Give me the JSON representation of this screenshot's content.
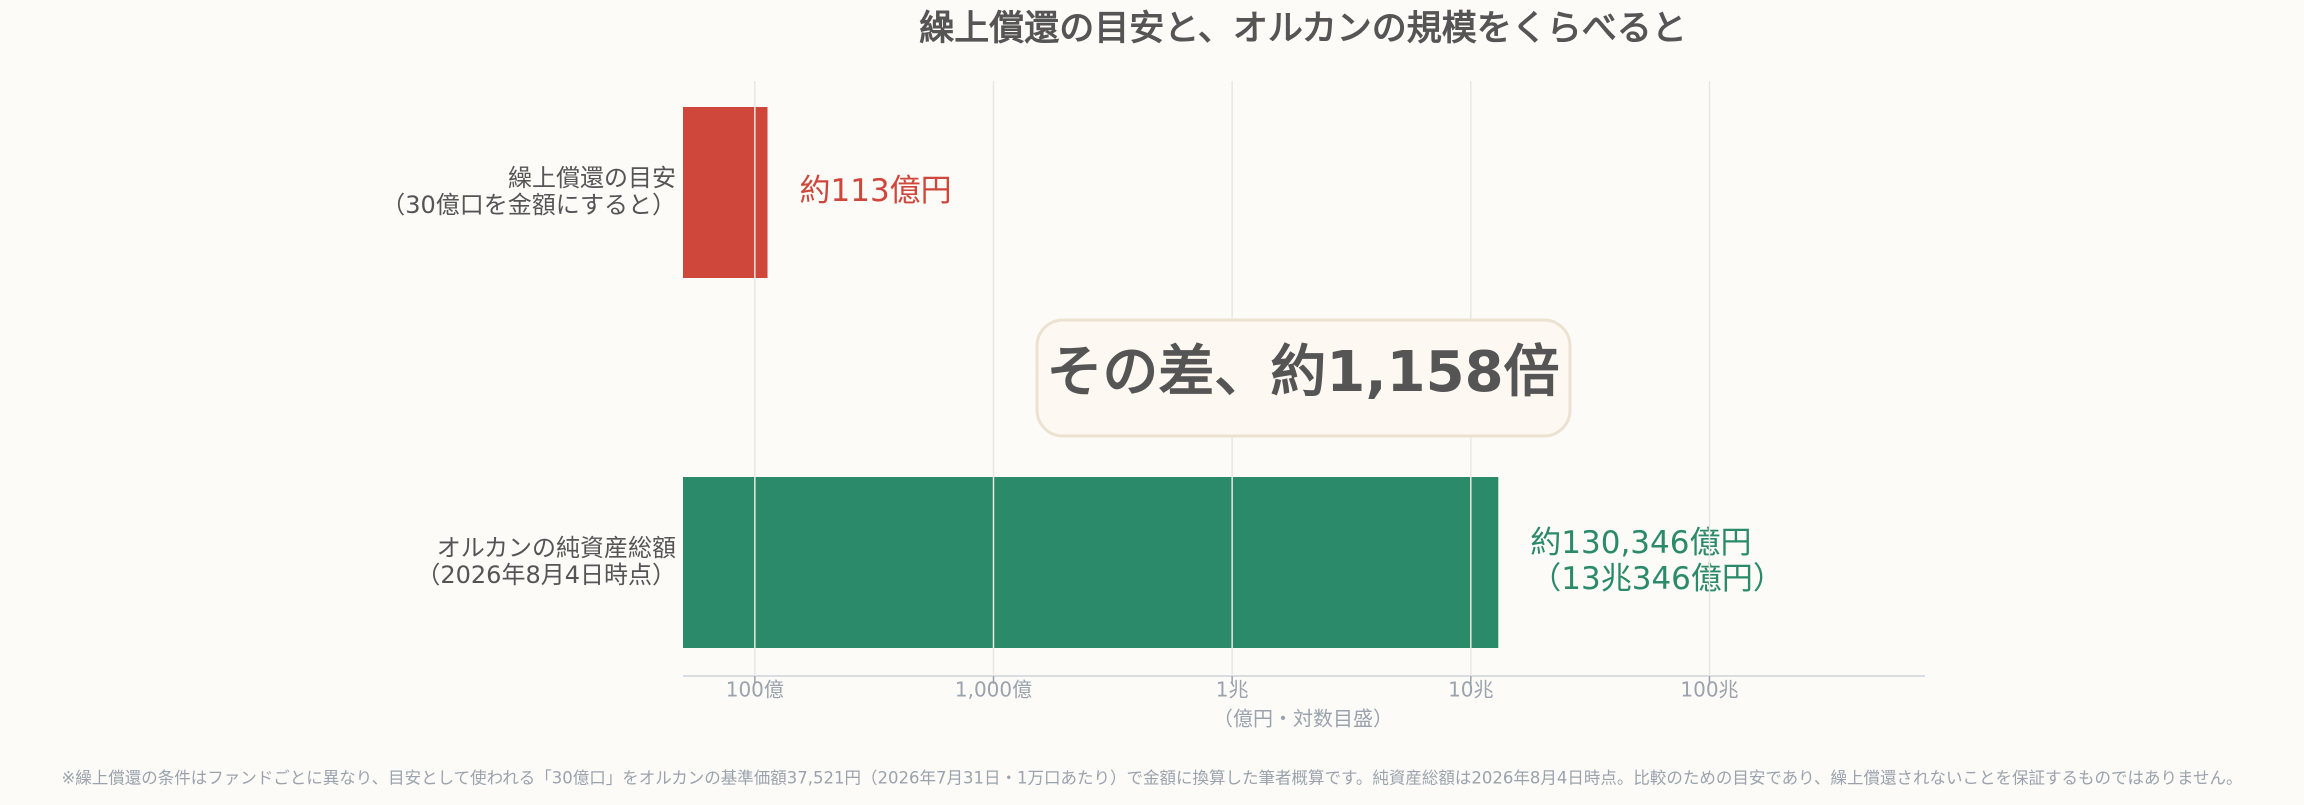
{
  "chart_data": {
    "type": "barh",
    "title": "繰上償還の目安と、オルカンの規模をくらべると",
    "categories": [
      [
        "繰上償還の目安",
        "（30億口を金額にすると）"
      ],
      [
        "オルカンの純資産総額",
        "（2026年8月4日時点）"
      ]
    ],
    "values": [
      113,
      130346
    ],
    "value_labels": [
      [
        "約113億円"
      ],
      [
        "約130,346億円",
        "（13兆346億円）"
      ]
    ],
    "colors": [
      "#cf463b",
      "#2b8a69"
    ],
    "xlim": [
      50,
      8000000
    ],
    "xscale": "log",
    "xticks": [
      {
        "value": 100,
        "label": "100億"
      },
      {
        "value": 1000,
        "label": "1,000億"
      },
      {
        "value": 10000,
        "label": "1兆"
      },
      {
        "value": 100000,
        "label": "10兆"
      },
      {
        "value": 1000000,
        "label": "100兆"
      }
    ],
    "xlabel": "（億円・対数目盛）",
    "grid": true,
    "annotation": "その差、約1,158倍",
    "footnote": "※繰上償還の条件はファンドごとに異なり、目安として使われる「30億口」をオルカンの基準価額37,521円（2026年7月31日・1万口あたり）で金額に換算した筆者概算です。純資産総額は2026年8月4日時点。比較のための目安であり、繰上償還されないことを保証するものではありません。"
  }
}
